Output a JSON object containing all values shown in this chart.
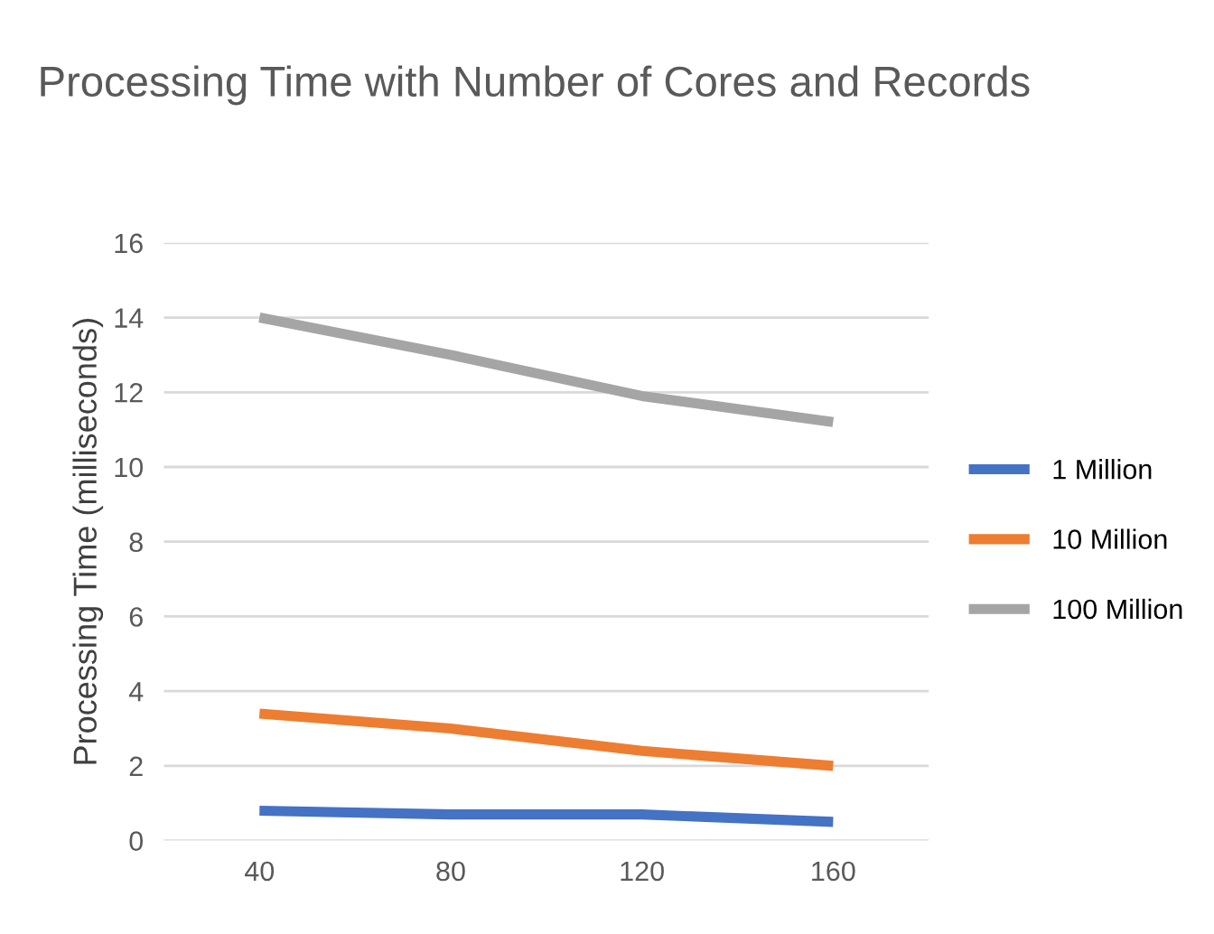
{
  "chart_data": {
    "type": "line",
    "title": "Processing Time with Number of Cores and Records",
    "ylabel": "Processing Time (milliseconds)",
    "categories": [
      "40",
      "80",
      "120",
      "160"
    ],
    "series": [
      {
        "name": "1 Million",
        "color": "#4472c4",
        "values": [
          0.8,
          0.7,
          0.7,
          0.5
        ]
      },
      {
        "name": "10 Million",
        "color": "#ed7d31",
        "values": [
          3.4,
          3.0,
          2.4,
          2.0
        ]
      },
      {
        "name": "100 Million",
        "color": "#a5a5a5",
        "values": [
          14.0,
          13.0,
          11.9,
          11.2
        ]
      }
    ],
    "ylim": [
      0,
      16
    ],
    "yticks": [
      0,
      2,
      4,
      6,
      8,
      10,
      12,
      14,
      16
    ],
    "grid": "y",
    "legend": "right",
    "marker": "none",
    "line_style": "solid"
  }
}
